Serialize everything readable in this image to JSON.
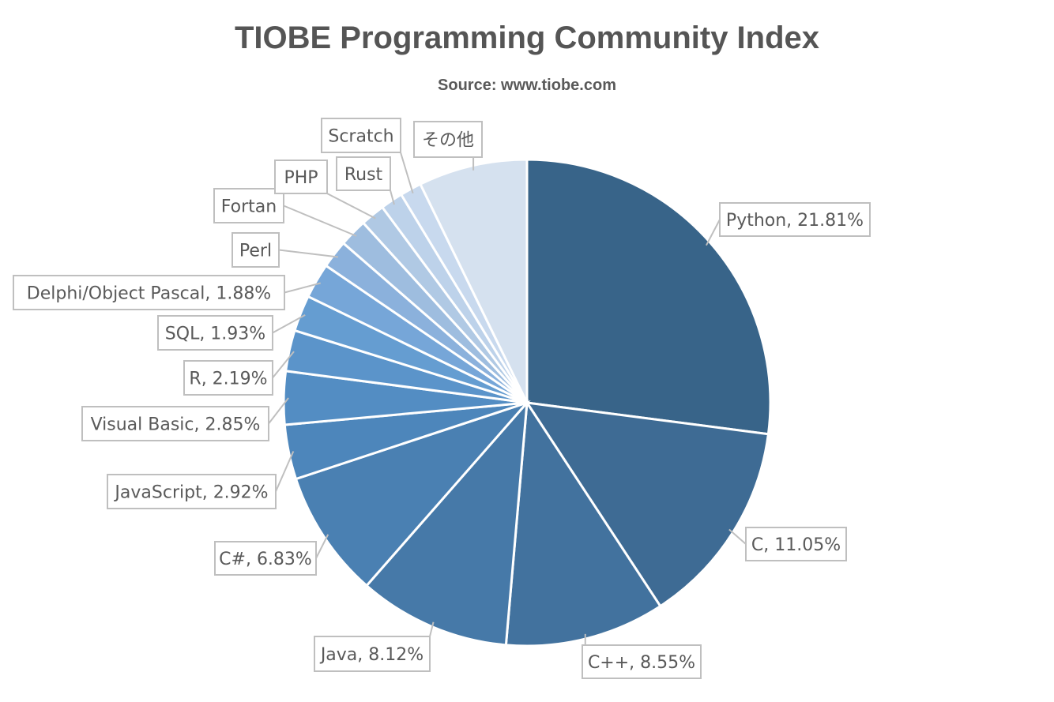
{
  "chart_data": {
    "type": "pie",
    "title": "TIOBE Programming Community Index",
    "subtitle": "Source: www.tiobe.com",
    "slices": [
      {
        "label": "Python",
        "value": 21.81,
        "data_label": "Python, 21.81%",
        "color": "#386489"
      },
      {
        "label": "C",
        "value": 11.05,
        "data_label": "C, 11.05%",
        "color": "#3e6b94"
      },
      {
        "label": "C++",
        "value": 8.55,
        "data_label": "C++, 8.55%",
        "color": "#42729e"
      },
      {
        "label": "Java",
        "value": 8.12,
        "data_label": "Java, 8.12%",
        "color": "#4679a8"
      },
      {
        "label": "C#",
        "value": 6.83,
        "data_label": "C#, 6.83%",
        "color": "#4a80b2"
      },
      {
        "label": "JavaScript",
        "value": 2.92,
        "data_label": "JavaScript, 2.92%",
        "color": "#4d86bb"
      },
      {
        "label": "Visual Basic",
        "value": 2.85,
        "data_label": "Visual Basic, 2.85%",
        "color": "#538dc3"
      },
      {
        "label": "R",
        "value": 2.19,
        "data_label": "R, 2.19%",
        "color": "#5b94ca"
      },
      {
        "label": "SQL",
        "value": 1.93,
        "data_label": "SQL, 1.93%",
        "color": "#659dd1"
      },
      {
        "label": "Delphi/Object Pascal",
        "value": 1.88,
        "data_label": "Delphi/Object Pascal, 1.88%",
        "color": "#76a6d8"
      },
      {
        "label": "Perl",
        "value": 1.5,
        "data_label": "Perl",
        "color": "#8bb1dc"
      },
      {
        "label": "Fortan",
        "value": 1.5,
        "data_label": "Fortan",
        "color": "#9ebddf"
      },
      {
        "label": "PHP",
        "value": 1.3,
        "data_label": "PHP",
        "color": "#b0c9e4"
      },
      {
        "label": "Rust",
        "value": 1.2,
        "data_label": "Rust",
        "color": "#bdd2ea"
      },
      {
        "label": "Scratch",
        "value": 1.15,
        "data_label": "Scratch",
        "color": "#c8d9ee"
      },
      {
        "label": "その他",
        "value": 5.82,
        "data_label": "その他",
        "color": "#d5e1ef"
      }
    ],
    "start_angle": "12 o'clock",
    "direction": "clockwise",
    "legend": "none"
  }
}
